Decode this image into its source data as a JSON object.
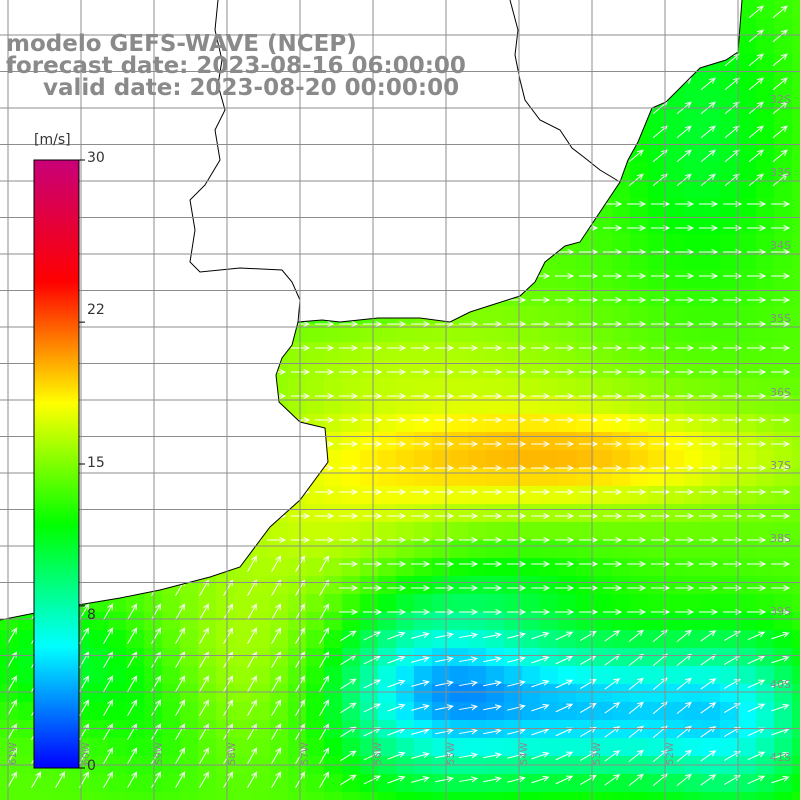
{
  "titles": {
    "line1": "modelo GEFS-WAVE (NCEP)",
    "line2": "forecast date: 2023-08-16 06:00:00",
    "line3": "valid date: 2023-08-20 00:00:00"
  },
  "colorbar": {
    "unit": "[m/s]",
    "min": 0,
    "max": 30,
    "tick_labels": [
      "30",
      "22",
      "15",
      "8",
      "0"
    ],
    "tick_values": [
      30,
      22,
      15,
      8,
      0
    ],
    "colors": [
      "#0000ff",
      "#00ffff",
      "#00ff00",
      "#ffff00",
      "#ff0000",
      "#c80078"
    ]
  },
  "grid": {
    "lat_labels": [
      "32S",
      "33S",
      "34S",
      "35S",
      "36S",
      "37S",
      "38S",
      "39S",
      "40S",
      "41S"
    ],
    "lon_labels": [
      "61W",
      "60W",
      "59W",
      "58W",
      "57W",
      "56W",
      "55W",
      "54W",
      "53W",
      "52W"
    ]
  },
  "colors": {
    "land": "#ffffff",
    "coast": "#000000",
    "gridline": "#8c8c8c",
    "arrow": "#ffffff",
    "title_gray": "#8a8a8a"
  }
}
